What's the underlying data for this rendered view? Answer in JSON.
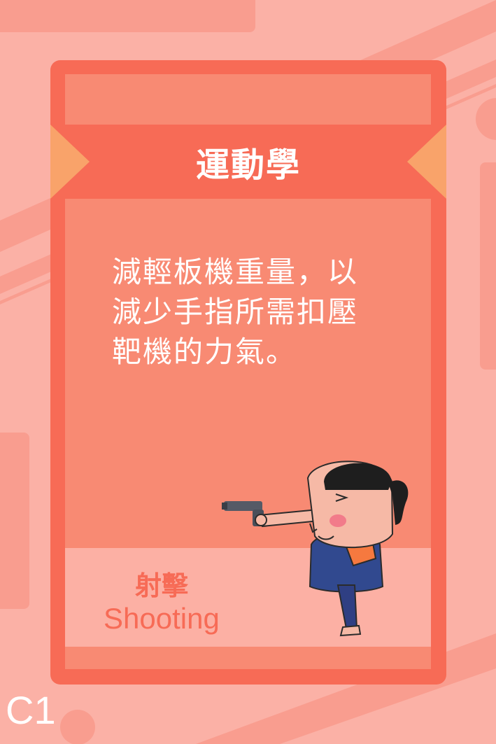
{
  "card": {
    "category": "運動學",
    "description_lines": [
      "減輕板機重量，以",
      "減少手指所需扣壓",
      "靶機的力氣。"
    ],
    "sport_zh": "射擊",
    "sport_en": "Shooting",
    "code": "C1"
  },
  "illustration": {
    "icon": "shooter-character-icon"
  },
  "colors": {
    "background": "#fbb1a6",
    "card_frame": "#f76b56",
    "card_inner": "#f88a73",
    "ribbon_tip": "#f9a36a",
    "label_area": "#fcb0a4",
    "label_text": "#f76b56"
  }
}
